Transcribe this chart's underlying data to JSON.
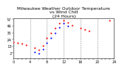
{
  "title": "Milwaukee Weather Outdoor Temperature",
  "subtitle": "vs Wind Chill",
  "subtitle2": "(24 Hours)",
  "background_color": "#ffffff",
  "grid_color": "#888888",
  "xlim": [
    0,
    24
  ],
  "ylim": [
    -7,
    58
  ],
  "ytick_labels": [
    "57",
    "46",
    "35",
    "24",
    "13",
    "2"
  ],
  "ytick_values": [
    57,
    46,
    35,
    24,
    13,
    2
  ],
  "xticks": [
    0,
    1,
    2,
    3,
    4,
    5,
    6,
    7,
    8,
    9,
    10,
    11,
    12,
    13,
    14,
    15,
    16,
    17,
    18,
    19,
    20,
    21,
    22,
    23,
    24
  ],
  "temp_color": "#ff0000",
  "windchill_color": "#0000ff",
  "temp_x": [
    0,
    1,
    2,
    3,
    5,
    6,
    7,
    8,
    9,
    10,
    11,
    12,
    13,
    14,
    16,
    17,
    18,
    23
  ],
  "temp_y": [
    20,
    19,
    17,
    15,
    10,
    7,
    14,
    26,
    35,
    42,
    50,
    55,
    52,
    47,
    42,
    40,
    38,
    55
  ],
  "windchill_x": [
    5,
    6,
    7,
    8,
    9,
    10,
    11,
    12,
    13
  ],
  "windchill_y": [
    3,
    1,
    8,
    18,
    27,
    35,
    44,
    50,
    46
  ],
  "marker_size": 2.5,
  "title_fontsize": 4.5,
  "tick_fontsize": 3.5,
  "vgrid_positions": [
    4,
    8,
    12,
    16,
    20,
    24
  ]
}
